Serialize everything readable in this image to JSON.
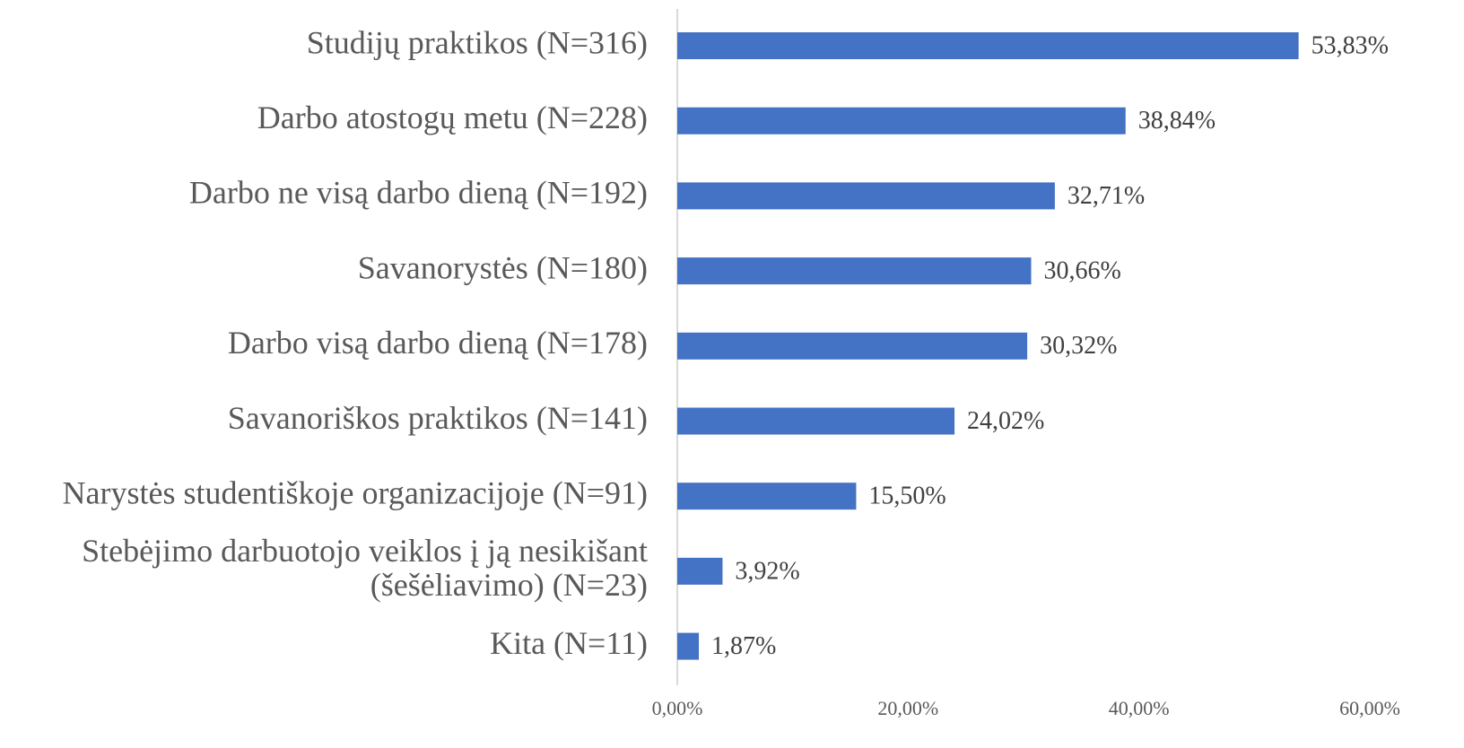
{
  "chart_data": {
    "type": "bar",
    "orientation": "horizontal",
    "categories": [
      "Studijų praktikos (N=316)",
      "Darbo atostogų metu (N=228)",
      "Darbo ne visą darbo dieną (N=192)",
      "Savanorystės (N=180)",
      "Darbo visą darbo dieną (N=178)",
      "Savanoriškos praktikos (N=141)",
      "Narystės studentiškoje organizacijoje (N=91)",
      "Stebėjimo darbuotojo veiklos į ją nesikišant (šešėliavimo) (N=23)",
      "Kita (N=11)"
    ],
    "values": [
      53.83,
      38.84,
      32.71,
      30.66,
      30.32,
      24.02,
      15.5,
      3.92,
      1.87
    ],
    "value_labels": [
      "53,83%",
      "38,84%",
      "32,71%",
      "30,66%",
      "30,32%",
      "24,02%",
      "15,50%",
      "3,92%",
      "1,87%"
    ],
    "color": "#4472c4",
    "xlim": [
      0,
      60
    ],
    "xticks": [
      {
        "value": 0,
        "label": "0,00%"
      },
      {
        "value": 20,
        "label": "20,00%"
      },
      {
        "value": 40,
        "label": "40,00%"
      },
      {
        "value": 60,
        "label": "60,00%"
      }
    ],
    "grid": false
  }
}
